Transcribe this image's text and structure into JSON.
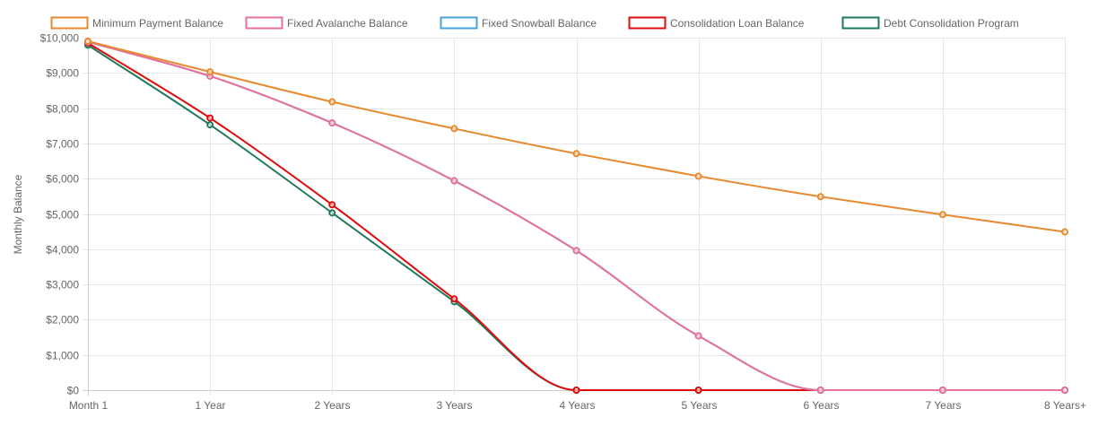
{
  "chart_data": {
    "type": "line",
    "title": "",
    "xlabel": "",
    "ylabel": "Monthly Balance",
    "categories": [
      "Month 1",
      "1 Year",
      "2 Years",
      "3 Years",
      "4 Years",
      "5 Years",
      "6 Years",
      "7 Years",
      "8 Years+"
    ],
    "ylim": [
      0,
      10000
    ],
    "yticks": [
      {
        "value": 0,
        "label": "$0"
      },
      {
        "value": 1000,
        "label": "$1,000"
      },
      {
        "value": 2000,
        "label": "$2,000"
      },
      {
        "value": 3000,
        "label": "$3,000"
      },
      {
        "value": 4000,
        "label": "$4,000"
      },
      {
        "value": 5000,
        "label": "$5,000"
      },
      {
        "value": 6000,
        "label": "$6,000"
      },
      {
        "value": 7000,
        "label": "$7,000"
      },
      {
        "value": 8000,
        "label": "$8,000"
      },
      {
        "value": 9000,
        "label": "$9,000"
      },
      {
        "value": 10000,
        "label": "$10,000"
      }
    ],
    "grid": true,
    "legend_position": "top",
    "series": [
      {
        "name": "Minimum Payment Balance",
        "color": "#E8892E",
        "values": [
          9900,
          9030,
          8180,
          7420,
          6710,
          6070,
          5490,
          4980,
          4490
        ]
      },
      {
        "name": "Fixed Avalanche Balance",
        "color": "#E8709A",
        "values": [
          9880,
          8910,
          7580,
          5940,
          3960,
          1540,
          0,
          0,
          0
        ]
      },
      {
        "name": "Fixed Snowball Balance",
        "color": "#45A5DA",
        "values": [
          9880,
          8910,
          7580,
          5940,
          3960,
          1540,
          0,
          0,
          0
        ]
      },
      {
        "name": "Consolidation Loan Balance",
        "color": "#E00B0B",
        "values": [
          9850,
          7720,
          5260,
          2590,
          0,
          0,
          0,
          0,
          0
        ]
      },
      {
        "name": "Debt Consolidation Program",
        "color": "#1F7A5C",
        "values": [
          9790,
          7530,
          5030,
          2510,
          0,
          0,
          0,
          0,
          0
        ]
      }
    ]
  }
}
